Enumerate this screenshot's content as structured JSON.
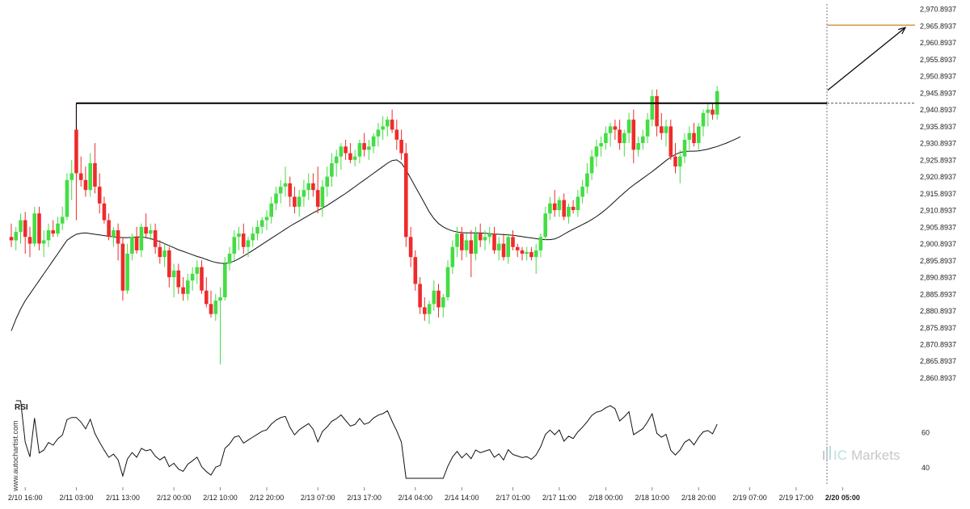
{
  "watermark": "www.autochartist.com",
  "brand": {
    "prefix": "IC",
    "name": "Markets"
  },
  "rsi_label": "RSI",
  "colors": {
    "up": "#44dd44",
    "down": "#ee2b2b",
    "line": "#000000",
    "target": "#c8861a",
    "grid": "#cfcfcf"
  },
  "chart_data": {
    "type": "candlestick",
    "y_ticks": [
      "2,970.8937",
      "2,965.8937",
      "2,960.8937",
      "2,955.8937",
      "2,950.8937",
      "2,945.8937",
      "2,940.8937",
      "2,935.8937",
      "2,930.8937",
      "2,925.8937",
      "2,920.8937",
      "2,915.8937",
      "2,910.8937",
      "2,905.8937",
      "2,900.8937",
      "2,895.8937",
      "2,890.8937",
      "2,885.8937",
      "2,880.8937",
      "2,875.8937",
      "2,870.8937",
      "2,865.8937",
      "2,860.8937"
    ],
    "ylim": [
      2858.0,
      2972.0
    ],
    "x_ticks": [
      {
        "label": "2/10 16:00",
        "i": 3
      },
      {
        "label": "2/11 03:00",
        "i": 14
      },
      {
        "label": "2/11 13:00",
        "i": 24
      },
      {
        "label": "2/12 00:00",
        "i": 35
      },
      {
        "label": "2/12 10:00",
        "i": 45
      },
      {
        "label": "2/12 20:00",
        "i": 55
      },
      {
        "label": "2/13 07:00",
        "i": 66
      },
      {
        "label": "2/13 17:00",
        "i": 76
      },
      {
        "label": "2/14 04:00",
        "i": 87
      },
      {
        "label": "2/14 14:00",
        "i": 97
      },
      {
        "label": "2/17 01:00",
        "i": 108
      },
      {
        "label": "2/17 11:00",
        "i": 118
      },
      {
        "label": "2/18 00:00",
        "i": 128
      },
      {
        "label": "2/18 10:00",
        "i": 138
      },
      {
        "label": "2/18 20:00",
        "i": 148
      },
      {
        "label": "2/19 07:00",
        "i": 159
      },
      {
        "label": "2/19 17:00",
        "i": 169
      },
      {
        "label": "2/20 05:00",
        "i": 179
      }
    ],
    "resistance": {
      "price": 2942.9,
      "from_i": 14
    },
    "target": {
      "price": 2966.2
    },
    "rsi_levels": [
      "60",
      "40"
    ],
    "rsi_range": [
      34,
      78
    ],
    "candles": [
      {
        "o": 2903.0,
        "h": 2907.0,
        "l": 2900.0,
        "c": 2902.0
      },
      {
        "o": 2902.0,
        "h": 2906.0,
        "l": 2899.0,
        "c": 2904.5
      },
      {
        "o": 2904.5,
        "h": 2910.0,
        "l": 2901.0,
        "c": 2908.0
      },
      {
        "o": 2908.0,
        "h": 2910.5,
        "l": 2898.0,
        "c": 2903.0
      },
      {
        "o": 2903.0,
        "h": 2906.0,
        "l": 2897.0,
        "c": 2901.0
      },
      {
        "o": 2901.0,
        "h": 2912.0,
        "l": 2900.0,
        "c": 2910.0
      },
      {
        "o": 2910.0,
        "h": 2912.0,
        "l": 2899.0,
        "c": 2901.0
      },
      {
        "o": 2901.0,
        "h": 2905.0,
        "l": 2897.0,
        "c": 2902.0
      },
      {
        "o": 2902.0,
        "h": 2907.0,
        "l": 2900.0,
        "c": 2905.0
      },
      {
        "o": 2905.0,
        "h": 2908.0,
        "l": 2903.0,
        "c": 2904.0
      },
      {
        "o": 2904.0,
        "h": 2909.0,
        "l": 2903.0,
        "c": 2907.0
      },
      {
        "o": 2907.0,
        "h": 2912.0,
        "l": 2905.0,
        "c": 2909.0
      },
      {
        "o": 2909.0,
        "h": 2922.0,
        "l": 2908.0,
        "c": 2920.0
      },
      {
        "o": 2920.0,
        "h": 2926.0,
        "l": 2914.0,
        "c": 2922.0
      },
      {
        "o": 2935.0,
        "h": 2943.0,
        "l": 2908.0,
        "c": 2922.0
      },
      {
        "o": 2922.0,
        "h": 2927.0,
        "l": 2918.0,
        "c": 2920.0
      },
      {
        "o": 2920.0,
        "h": 2924.0,
        "l": 2915.0,
        "c": 2917.0
      },
      {
        "o": 2917.0,
        "h": 2928.0,
        "l": 2915.0,
        "c": 2925.0
      },
      {
        "o": 2925.0,
        "h": 2931.0,
        "l": 2916.0,
        "c": 2918.0
      },
      {
        "o": 2918.0,
        "h": 2922.0,
        "l": 2910.0,
        "c": 2913.0
      },
      {
        "o": 2913.0,
        "h": 2915.0,
        "l": 2907.0,
        "c": 2908.0
      },
      {
        "o": 2908.0,
        "h": 2910.0,
        "l": 2902.0,
        "c": 2903.0
      },
      {
        "o": 2903.0,
        "h": 2906.0,
        "l": 2900.0,
        "c": 2905.0
      },
      {
        "o": 2905.0,
        "h": 2907.0,
        "l": 2896.0,
        "c": 2901.0
      },
      {
        "o": 2901.0,
        "h": 2903.0,
        "l": 2884.0,
        "c": 2887.0
      },
      {
        "o": 2887.0,
        "h": 2901.0,
        "l": 2886.0,
        "c": 2898.0
      },
      {
        "o": 2898.0,
        "h": 2904.0,
        "l": 2896.0,
        "c": 2903.0
      },
      {
        "o": 2903.0,
        "h": 2906.0,
        "l": 2898.0,
        "c": 2899.0
      },
      {
        "o": 2899.0,
        "h": 2907.0,
        "l": 2897.0,
        "c": 2906.0
      },
      {
        "o": 2906.0,
        "h": 2910.0,
        "l": 2903.0,
        "c": 2904.0
      },
      {
        "o": 2904.0,
        "h": 2907.0,
        "l": 2902.0,
        "c": 2905.0
      },
      {
        "o": 2905.0,
        "h": 2907.0,
        "l": 2898.0,
        "c": 2900.0
      },
      {
        "o": 2900.0,
        "h": 2902.0,
        "l": 2895.0,
        "c": 2897.0
      },
      {
        "o": 2897.0,
        "h": 2901.0,
        "l": 2894.0,
        "c": 2899.0
      },
      {
        "o": 2899.0,
        "h": 2900.0,
        "l": 2888.0,
        "c": 2891.0
      },
      {
        "o": 2891.0,
        "h": 2895.0,
        "l": 2885.0,
        "c": 2893.0
      },
      {
        "o": 2893.0,
        "h": 2895.0,
        "l": 2886.0,
        "c": 2888.0
      },
      {
        "o": 2888.0,
        "h": 2891.0,
        "l": 2884.0,
        "c": 2886.0
      },
      {
        "o": 2886.0,
        "h": 2892.0,
        "l": 2884.0,
        "c": 2890.0
      },
      {
        "o": 2890.0,
        "h": 2894.0,
        "l": 2887.0,
        "c": 2892.0
      },
      {
        "o": 2892.0,
        "h": 2896.0,
        "l": 2889.0,
        "c": 2894.0
      },
      {
        "o": 2894.0,
        "h": 2896.0,
        "l": 2886.0,
        "c": 2887.0
      },
      {
        "o": 2887.0,
        "h": 2891.0,
        "l": 2882.0,
        "c": 2883.0
      },
      {
        "o": 2883.0,
        "h": 2887.0,
        "l": 2879.0,
        "c": 2880.0
      },
      {
        "o": 2880.0,
        "h": 2886.0,
        "l": 2878.0,
        "c": 2884.0
      },
      {
        "o": 2884.0,
        "h": 2888.0,
        "l": 2865.0,
        "c": 2885.0
      },
      {
        "o": 2885.0,
        "h": 2897.0,
        "l": 2884.0,
        "c": 2895.0
      },
      {
        "o": 2895.0,
        "h": 2900.0,
        "l": 2893.0,
        "c": 2898.0
      },
      {
        "o": 2898.0,
        "h": 2905.0,
        "l": 2896.0,
        "c": 2903.0
      },
      {
        "o": 2903.0,
        "h": 2906.0,
        "l": 2899.0,
        "c": 2904.0
      },
      {
        "o": 2904.0,
        "h": 2907.0,
        "l": 2898.0,
        "c": 2900.0
      },
      {
        "o": 2900.0,
        "h": 2903.0,
        "l": 2897.0,
        "c": 2902.0
      },
      {
        "o": 2902.0,
        "h": 2906.0,
        "l": 2900.0,
        "c": 2904.0
      },
      {
        "o": 2904.0,
        "h": 2908.0,
        "l": 2902.0,
        "c": 2906.0
      },
      {
        "o": 2906.0,
        "h": 2909.0,
        "l": 2904.0,
        "c": 2908.0
      },
      {
        "o": 2908.0,
        "h": 2911.0,
        "l": 2905.0,
        "c": 2909.0
      },
      {
        "o": 2909.0,
        "h": 2915.0,
        "l": 2907.0,
        "c": 2913.0
      },
      {
        "o": 2913.0,
        "h": 2918.0,
        "l": 2911.0,
        "c": 2916.0
      },
      {
        "o": 2916.0,
        "h": 2920.0,
        "l": 2913.0,
        "c": 2918.0
      },
      {
        "o": 2918.0,
        "h": 2924.0,
        "l": 2915.0,
        "c": 2919.0
      },
      {
        "o": 2919.0,
        "h": 2921.0,
        "l": 2912.0,
        "c": 2915.0
      },
      {
        "o": 2915.0,
        "h": 2918.0,
        "l": 2910.0,
        "c": 2912.0
      },
      {
        "o": 2912.0,
        "h": 2917.0,
        "l": 2909.0,
        "c": 2915.0
      },
      {
        "o": 2915.0,
        "h": 2920.0,
        "l": 2912.0,
        "c": 2917.0
      },
      {
        "o": 2917.0,
        "h": 2922.0,
        "l": 2914.0,
        "c": 2919.0
      },
      {
        "o": 2919.0,
        "h": 2922.0,
        "l": 2915.0,
        "c": 2917.0
      },
      {
        "o": 2917.0,
        "h": 2924.0,
        "l": 2910.0,
        "c": 2912.0
      },
      {
        "o": 2912.0,
        "h": 2920.0,
        "l": 2909.0,
        "c": 2918.0
      },
      {
        "o": 2918.0,
        "h": 2924.0,
        "l": 2915.0,
        "c": 2921.0
      },
      {
        "o": 2921.0,
        "h": 2928.0,
        "l": 2918.0,
        "c": 2925.0
      },
      {
        "o": 2925.0,
        "h": 2929.0,
        "l": 2921.0,
        "c": 2927.0
      },
      {
        "o": 2927.0,
        "h": 2931.0,
        "l": 2923.0,
        "c": 2930.0
      },
      {
        "o": 2930.0,
        "h": 2932.0,
        "l": 2926.0,
        "c": 2928.0
      },
      {
        "o": 2928.0,
        "h": 2931.0,
        "l": 2925.0,
        "c": 2926.0
      },
      {
        "o": 2926.0,
        "h": 2929.0,
        "l": 2924.0,
        "c": 2927.0
      },
      {
        "o": 2927.0,
        "h": 2932.0,
        "l": 2925.0,
        "c": 2931.0
      },
      {
        "o": 2931.0,
        "h": 2934.0,
        "l": 2927.0,
        "c": 2929.0
      },
      {
        "o": 2929.0,
        "h": 2932.0,
        "l": 2926.0,
        "c": 2930.0
      },
      {
        "o": 2930.0,
        "h": 2934.0,
        "l": 2928.0,
        "c": 2933.0
      },
      {
        "o": 2933.0,
        "h": 2937.0,
        "l": 2930.0,
        "c": 2935.0
      },
      {
        "o": 2935.0,
        "h": 2939.0,
        "l": 2932.0,
        "c": 2936.0
      },
      {
        "o": 2936.0,
        "h": 2939.0,
        "l": 2933.0,
        "c": 2938.0
      },
      {
        "o": 2938.0,
        "h": 2941.0,
        "l": 2934.0,
        "c": 2935.0
      },
      {
        "o": 2935.0,
        "h": 2938.0,
        "l": 2929.0,
        "c": 2932.0
      },
      {
        "o": 2932.0,
        "h": 2935.0,
        "l": 2926.0,
        "c": 2928.0
      },
      {
        "o": 2928.0,
        "h": 2931.0,
        "l": 2900.0,
        "c": 2903.0
      },
      {
        "o": 2903.0,
        "h": 2906.0,
        "l": 2894.0,
        "c": 2897.0
      },
      {
        "o": 2897.0,
        "h": 2899.0,
        "l": 2887.0,
        "c": 2889.0
      },
      {
        "o": 2889.0,
        "h": 2891.0,
        "l": 2880.0,
        "c": 2882.0
      },
      {
        "o": 2882.0,
        "h": 2885.0,
        "l": 2878.0,
        "c": 2880.0
      },
      {
        "o": 2880.0,
        "h": 2884.0,
        "l": 2877.0,
        "c": 2883.0
      },
      {
        "o": 2883.0,
        "h": 2890.0,
        "l": 2881.0,
        "c": 2887.0
      },
      {
        "o": 2887.0,
        "h": 2889.0,
        "l": 2879.0,
        "c": 2882.0
      },
      {
        "o": 2882.0,
        "h": 2886.0,
        "l": 2879.0,
        "c": 2885.0
      },
      {
        "o": 2885.0,
        "h": 2896.0,
        "l": 2884.0,
        "c": 2894.0
      },
      {
        "o": 2894.0,
        "h": 2902.0,
        "l": 2892.0,
        "c": 2900.0
      },
      {
        "o": 2900.0,
        "h": 2906.0,
        "l": 2897.0,
        "c": 2904.0
      },
      {
        "o": 2904.0,
        "h": 2906.0,
        "l": 2896.0,
        "c": 2899.0
      },
      {
        "o": 2899.0,
        "h": 2904.0,
        "l": 2897.0,
        "c": 2902.0
      },
      {
        "o": 2902.0,
        "h": 2905.0,
        "l": 2891.0,
        "c": 2898.0
      },
      {
        "o": 2898.0,
        "h": 2906.0,
        "l": 2896.0,
        "c": 2904.0
      },
      {
        "o": 2904.0,
        "h": 2907.0,
        "l": 2900.0,
        "c": 2902.0
      },
      {
        "o": 2902.0,
        "h": 2905.0,
        "l": 2899.0,
        "c": 2903.0
      },
      {
        "o": 2903.0,
        "h": 2906.0,
        "l": 2901.0,
        "c": 2904.0
      },
      {
        "o": 2904.0,
        "h": 2906.0,
        "l": 2898.0,
        "c": 2899.0
      },
      {
        "o": 2899.0,
        "h": 2903.0,
        "l": 2896.0,
        "c": 2901.0
      },
      {
        "o": 2901.0,
        "h": 2904.0,
        "l": 2896.0,
        "c": 2897.0
      },
      {
        "o": 2897.0,
        "h": 2904.0,
        "l": 2895.0,
        "c": 2903.0
      },
      {
        "o": 2903.0,
        "h": 2905.0,
        "l": 2899.0,
        "c": 2900.0
      },
      {
        "o": 2900.0,
        "h": 2901.0,
        "l": 2897.0,
        "c": 2899.0
      },
      {
        "o": 2899.0,
        "h": 2900.0,
        "l": 2896.0,
        "c": 2898.0
      },
      {
        "o": 2898.0,
        "h": 2900.0,
        "l": 2896.0,
        "c": 2898.5
      },
      {
        "o": 2898.5,
        "h": 2900.0,
        "l": 2896.0,
        "c": 2897.0
      },
      {
        "o": 2897.0,
        "h": 2901.0,
        "l": 2892.0,
        "c": 2899.0
      },
      {
        "o": 2899.0,
        "h": 2904.0,
        "l": 2897.0,
        "c": 2903.0
      },
      {
        "o": 2903.0,
        "h": 2912.0,
        "l": 2902.0,
        "c": 2910.0
      },
      {
        "o": 2910.0,
        "h": 2915.0,
        "l": 2908.0,
        "c": 2913.0
      },
      {
        "o": 2913.0,
        "h": 2917.0,
        "l": 2909.0,
        "c": 2911.0
      },
      {
        "o": 2911.0,
        "h": 2915.0,
        "l": 2909.0,
        "c": 2914.0
      },
      {
        "o": 2914.0,
        "h": 2916.0,
        "l": 2908.0,
        "c": 2909.0
      },
      {
        "o": 2909.0,
        "h": 2913.0,
        "l": 2907.0,
        "c": 2912.0
      },
      {
        "o": 2912.0,
        "h": 2914.0,
        "l": 2910.0,
        "c": 2911.0
      },
      {
        "o": 2911.0,
        "h": 2917.0,
        "l": 2909.0,
        "c": 2915.0
      },
      {
        "o": 2915.0,
        "h": 2920.0,
        "l": 2913.0,
        "c": 2918.0
      },
      {
        "o": 2918.0,
        "h": 2925.0,
        "l": 2916.0,
        "c": 2922.0
      },
      {
        "o": 2922.0,
        "h": 2929.0,
        "l": 2920.0,
        "c": 2927.0
      },
      {
        "o": 2927.0,
        "h": 2932.0,
        "l": 2924.0,
        "c": 2930.0
      },
      {
        "o": 2930.0,
        "h": 2933.0,
        "l": 2927.0,
        "c": 2931.0
      },
      {
        "o": 2931.0,
        "h": 2936.0,
        "l": 2929.0,
        "c": 2934.0
      },
      {
        "o": 2934.0,
        "h": 2937.0,
        "l": 2930.0,
        "c": 2936.0
      },
      {
        "o": 2936.0,
        "h": 2938.0,
        "l": 2932.0,
        "c": 2935.0
      },
      {
        "o": 2935.0,
        "h": 2938.0,
        "l": 2929.0,
        "c": 2931.0
      },
      {
        "o": 2931.0,
        "h": 2935.0,
        "l": 2927.0,
        "c": 2934.0
      },
      {
        "o": 2934.0,
        "h": 2940.0,
        "l": 2931.0,
        "c": 2938.0
      },
      {
        "o": 2938.0,
        "h": 2941.0,
        "l": 2925.0,
        "c": 2929.0
      },
      {
        "o": 2929.0,
        "h": 2933.0,
        "l": 2927.0,
        "c": 2931.0
      },
      {
        "o": 2931.0,
        "h": 2935.0,
        "l": 2929.0,
        "c": 2933.0
      },
      {
        "o": 2933.0,
        "h": 2940.0,
        "l": 2931.0,
        "c": 2938.0
      },
      {
        "o": 2938.0,
        "h": 2947.0,
        "l": 2936.0,
        "c": 2945.0
      },
      {
        "o": 2945.0,
        "h": 2947.0,
        "l": 2933.0,
        "c": 2936.0
      },
      {
        "o": 2936.0,
        "h": 2940.0,
        "l": 2932.0,
        "c": 2934.0
      },
      {
        "o": 2934.0,
        "h": 2938.0,
        "l": 2930.0,
        "c": 2936.0
      },
      {
        "o": 2936.0,
        "h": 2938.0,
        "l": 2926.0,
        "c": 2927.0
      },
      {
        "o": 2927.0,
        "h": 2931.0,
        "l": 2922.0,
        "c": 2924.0
      },
      {
        "o": 2924.0,
        "h": 2929.0,
        "l": 2919.0,
        "c": 2927.0
      },
      {
        "o": 2927.0,
        "h": 2934.0,
        "l": 2925.0,
        "c": 2932.0
      },
      {
        "o": 2932.0,
        "h": 2936.0,
        "l": 2929.0,
        "c": 2934.0
      },
      {
        "o": 2934.0,
        "h": 2937.0,
        "l": 2930.0,
        "c": 2931.0
      },
      {
        "o": 2931.0,
        "h": 2937.0,
        "l": 2929.0,
        "c": 2936.0
      },
      {
        "o": 2936.0,
        "h": 2941.0,
        "l": 2933.0,
        "c": 2940.0
      },
      {
        "o": 2940.0,
        "h": 2943.0,
        "l": 2936.0,
        "c": 2941.0
      },
      {
        "o": 2941.0,
        "h": 2943.0,
        "l": 2938.0,
        "c": 2939.5
      },
      {
        "o": 2939.5,
        "h": 2948.0,
        "l": 2938.0,
        "c": 2946.5
      }
    ],
    "ma": [
      2875.0,
      2878.5,
      2881.5,
      2884.0,
      2886.0,
      2888.0,
      2890.0,
      2892.0,
      2894.0,
      2896.0,
      2898.0,
      2900.0,
      2902.0,
      2903.0,
      2903.8,
      2904.1,
      2904.2,
      2904.0,
      2903.8,
      2903.6,
      2903.4,
      2903.2,
      2903.0,
      2902.9,
      2902.8,
      2902.8,
      2902.9,
      2903.0,
      2903.0,
      2902.8,
      2902.5,
      2902.1,
      2901.6,
      2901.0,
      2900.4,
      2899.8,
      2899.2,
      2898.7,
      2898.2,
      2897.7,
      2897.2,
      2896.8,
      2896.3,
      2895.8,
      2895.4,
      2895.2,
      2895.1,
      2895.3,
      2895.8,
      2896.5,
      2897.3,
      2898.1,
      2899.0,
      2899.9,
      2900.8,
      2901.7,
      2902.6,
      2903.5,
      2904.4,
      2905.3,
      2906.2,
      2907.0,
      2907.8,
      2908.6,
      2909.4,
      2910.2,
      2910.9,
      2911.6,
      2912.4,
      2913.3,
      2914.2,
      2915.1,
      2916.0,
      2917.0,
      2918.0,
      2919.0,
      2920.0,
      2921.0,
      2922.0,
      2923.0,
      2924.0,
      2925.0,
      2925.8,
      2926.0,
      2925.0,
      2923.0,
      2920.5,
      2918.0,
      2915.5,
      2913.0,
      2910.5,
      2908.5,
      2907.0,
      2906.0,
      2905.3,
      2904.8,
      2904.5,
      2904.3,
      2904.2,
      2904.2,
      2904.2,
      2904.2,
      2904.1,
      2904.0,
      2903.9,
      2903.8,
      2903.7,
      2903.6,
      2903.5,
      2903.3,
      2903.1,
      2902.9,
      2902.7,
      2902.5,
      2902.3,
      2902.2,
      2902.2,
      2902.4,
      2903.0,
      2903.8,
      2904.6,
      2905.3,
      2906.0,
      2906.7,
      2907.4,
      2908.2,
      2909.1,
      2910.1,
      2911.2,
      2912.4,
      2913.7,
      2915.0,
      2916.2,
      2917.4,
      2918.5,
      2919.5,
      2920.5,
      2921.5,
      2922.5,
      2923.6,
      2924.7,
      2925.8,
      2926.8,
      2927.6,
      2928.2,
      2928.5,
      2928.6,
      2928.6,
      2928.7,
      2928.9,
      2929.2,
      2929.6,
      2930.0,
      2930.5,
      2931.0,
      2931.6,
      2932.2,
      2932.9
    ]
  }
}
